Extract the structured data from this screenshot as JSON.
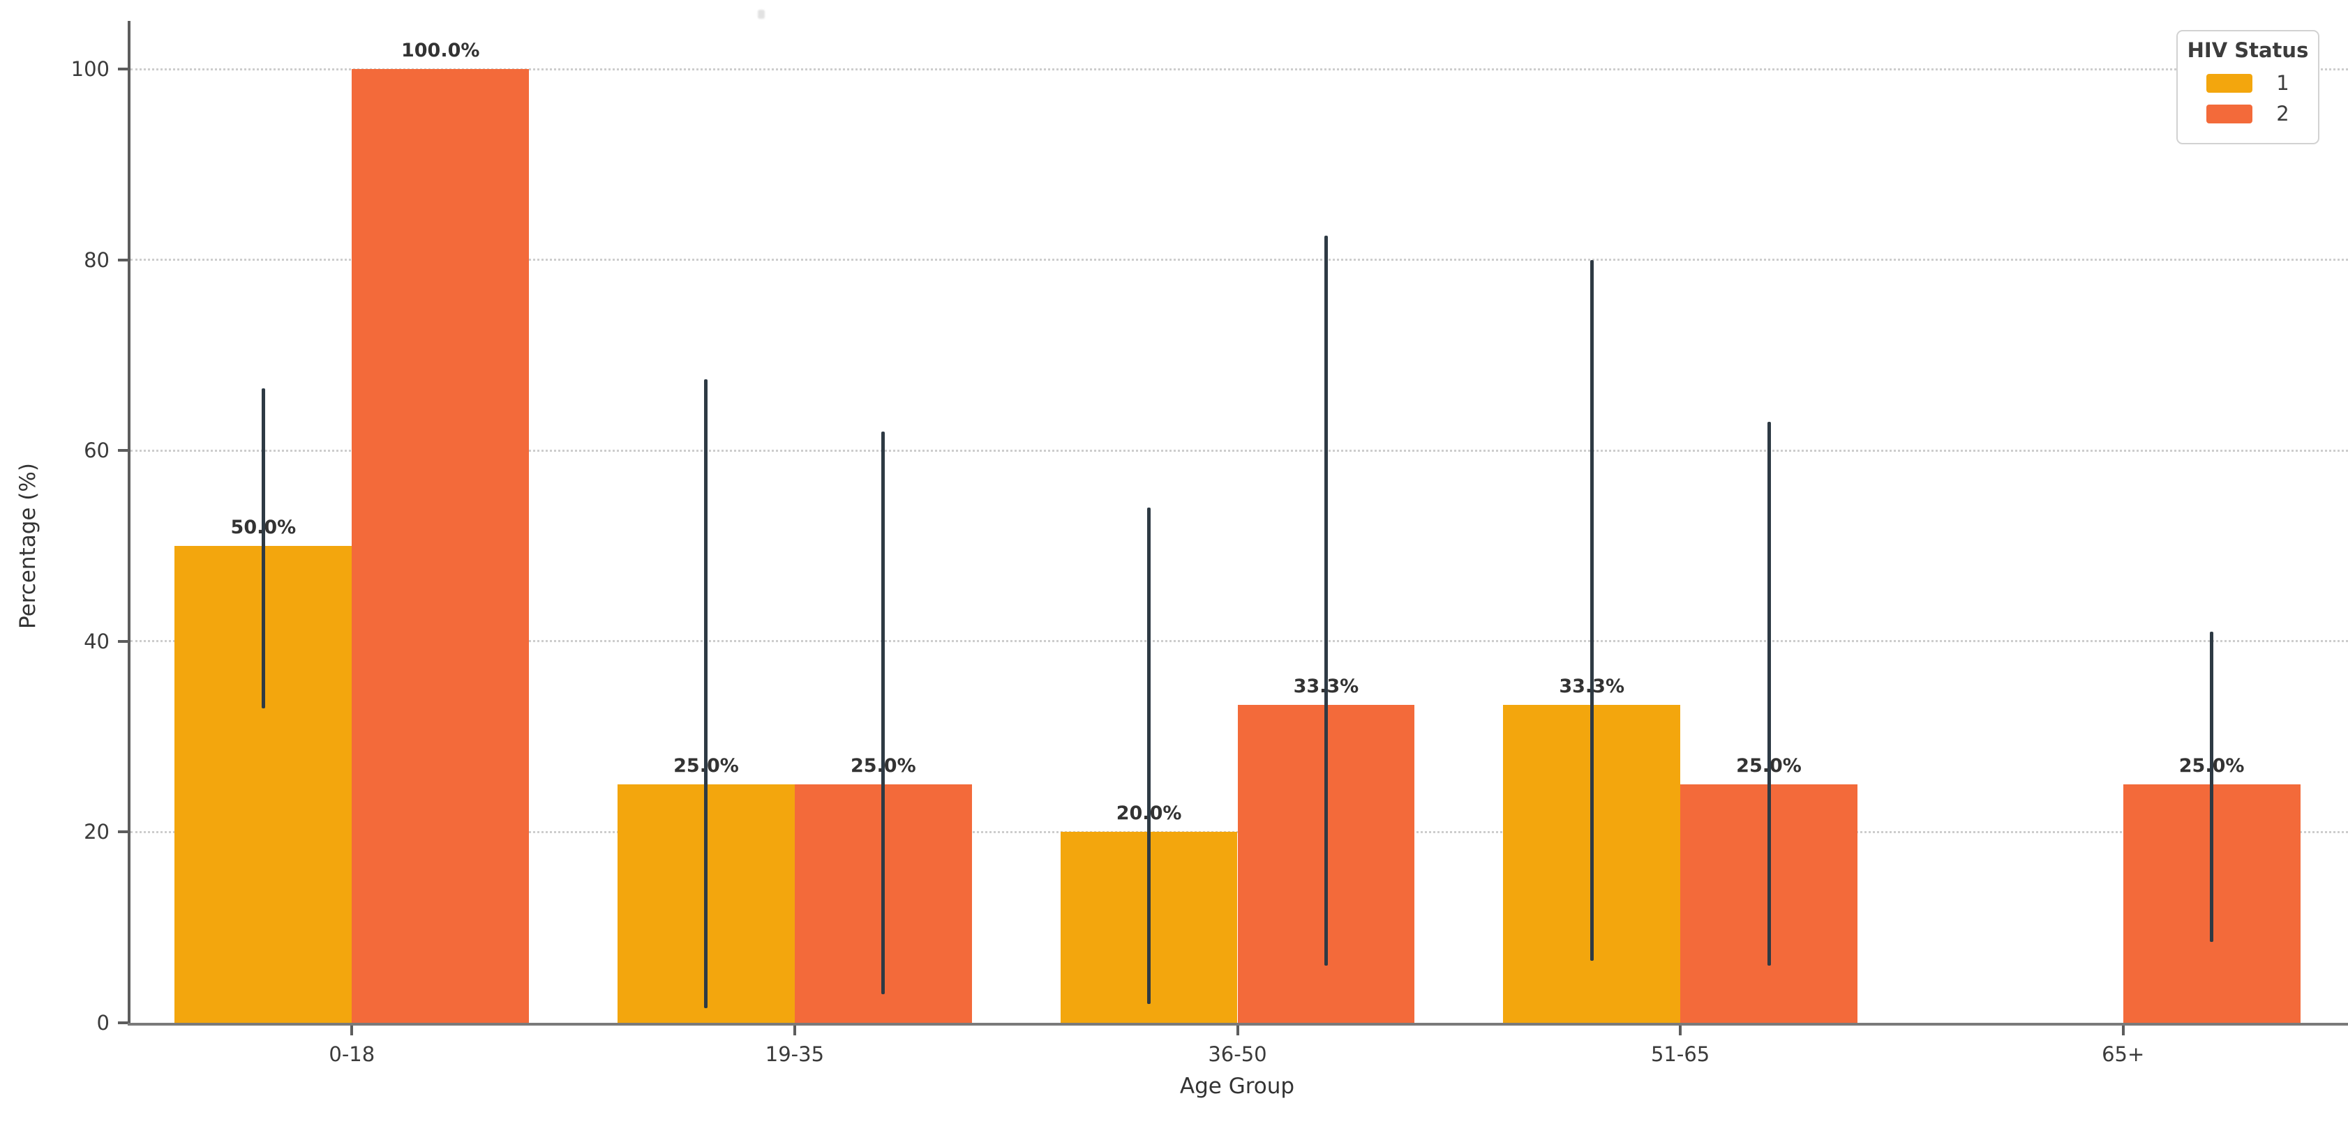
{
  "legend": {
    "title": "HIV Status",
    "entries": [
      {
        "label": "1",
        "color": "#F3A60D"
      },
      {
        "label": "2",
        "color": "#F36A3A"
      }
    ]
  },
  "colors": {
    "series_1": "#F3A60D",
    "series_2": "#F36A3A",
    "error_bar": "#2E3A44",
    "gridline": "#CDCDCD"
  },
  "chart_data": {
    "type": "bar",
    "title": "",
    "xlabel": "Age Group",
    "ylabel": "Percentage (%)",
    "categories": [
      "0-18",
      "19-35",
      "36-50",
      "51-65",
      "65+"
    ],
    "yticks": [
      0,
      20,
      40,
      60,
      80,
      100
    ],
    "ylim": [
      0,
      105
    ],
    "grid": "horizontal-dotted",
    "legend_title": "HIV Status",
    "legend_position": "upper-right",
    "bar_value_labels": true,
    "series": [
      {
        "name": "1",
        "color": "#F3A60D",
        "values": [
          50.0,
          25.0,
          20.0,
          33.3,
          null
        ],
        "labels": [
          "50.0%",
          "25.0%",
          "20.0%",
          "33.3%",
          null
        ],
        "err_low": [
          33.0,
          1.5,
          2.0,
          6.5,
          null
        ],
        "err_high": [
          66.5,
          67.5,
          54.0,
          80.0,
          null
        ]
      },
      {
        "name": "2",
        "color": "#F36A3A",
        "values": [
          100.0,
          25.0,
          33.3,
          25.0,
          25.0
        ],
        "labels": [
          "100.0%",
          "25.0%",
          "33.3%",
          "25.0%",
          "25.0%"
        ],
        "err_low": [
          null,
          3.0,
          6.0,
          6.0,
          8.5
        ],
        "err_high": [
          null,
          62.0,
          82.5,
          63.0,
          41.0
        ]
      }
    ]
  }
}
